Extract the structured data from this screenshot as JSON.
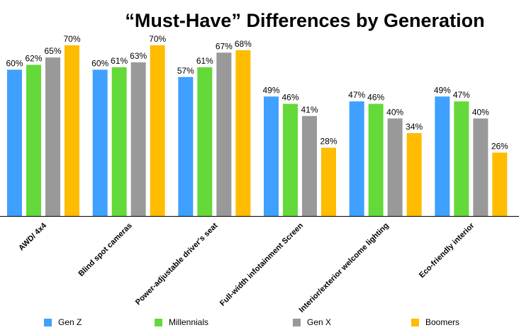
{
  "chart_data": {
    "type": "bar",
    "title": "“Must-Have” Differences by Generation",
    "categories": [
      "AWD/ 4x4",
      "Blind spot cameras",
      "Power-adjustable driver's seat",
      "Full-width infotainment Screen",
      "Interior/exterior welcome lighting",
      "Eco-friendly interior"
    ],
    "series": [
      {
        "name": "Gen Z",
        "color": "#3FA0FF",
        "values": [
          60,
          60,
          57,
          49,
          47,
          49
        ]
      },
      {
        "name": "Millennials",
        "color": "#64D93A",
        "values": [
          62,
          61,
          61,
          46,
          46,
          47
        ]
      },
      {
        "name": "Gen X",
        "color": "#999999",
        "values": [
          65,
          63,
          67,
          41,
          40,
          40
        ]
      },
      {
        "name": "Boomers",
        "color": "#FFBC00",
        "values": [
          70,
          70,
          68,
          28,
          34,
          26
        ]
      }
    ],
    "value_suffix": "%",
    "ylim": [
      0,
      70
    ],
    "grid": false,
    "legend_position": "bottom"
  }
}
